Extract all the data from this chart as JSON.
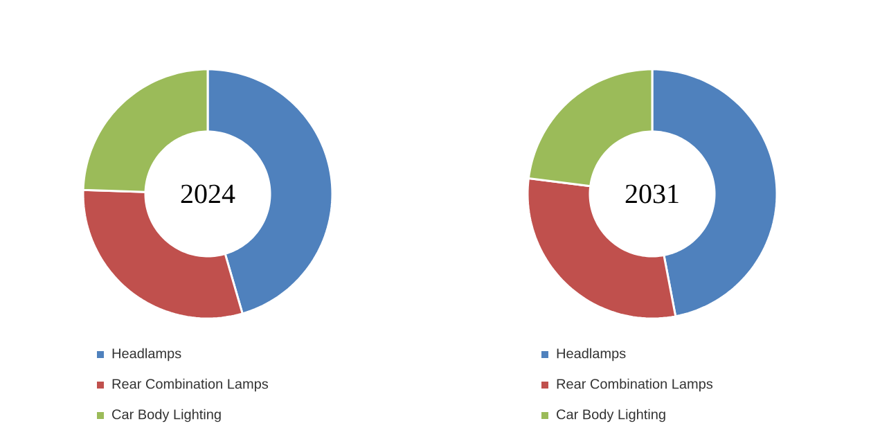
{
  "chart_data": [
    {
      "type": "donut",
      "title": "2024",
      "categories": [
        "Headlamps",
        "Rear Combination Lamps",
        "Car Body Lighting"
      ],
      "values": [
        45.5,
        30,
        24.5
      ],
      "colors": [
        "#4f81bd",
        "#c0504d",
        "#9bbb59"
      ],
      "legend": "bottom"
    },
    {
      "type": "donut",
      "title": "2031",
      "categories": [
        "Headlamps",
        "Rear Combination Lamps",
        "Car Body Lighting"
      ],
      "values": [
        47,
        30,
        23
      ],
      "colors": [
        "#4f81bd",
        "#c0504d",
        "#9bbb59"
      ],
      "legend": "bottom"
    }
  ]
}
